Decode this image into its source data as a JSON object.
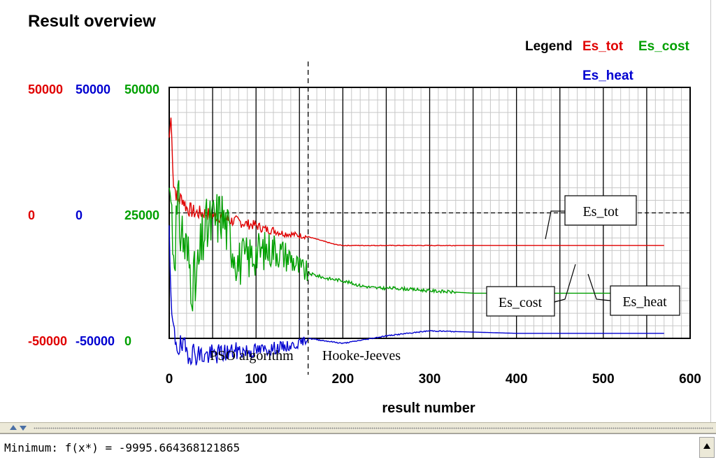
{
  "window": {
    "title": "Result overview",
    "console_text": "Minimum: f(x*) = -9995.664368121865"
  },
  "colors": {
    "tot": "#e00000",
    "heat": "#0000d0",
    "cost": "#00a000",
    "grid_major": "#000000",
    "grid_minor": "#c8c8c8"
  },
  "chart_data": {
    "type": "line",
    "title": "Result overview",
    "xlabel": "result number",
    "xlim": [
      0,
      600
    ],
    "x_ticks": [
      0,
      100,
      200,
      300,
      400,
      500,
      600
    ],
    "legend": {
      "title": "Legend",
      "placement": "top-right",
      "entries": [
        "Es_tot",
        "Es_cost",
        "Es_heat"
      ]
    },
    "y_axes": [
      {
        "series": "Es_tot",
        "color": "#e00000",
        "ylim": [
          -50000,
          50000
        ],
        "ticks": [
          "50000",
          "0",
          "-50000"
        ]
      },
      {
        "series": "Es_heat",
        "color": "#0000d0",
        "ylim": [
          -50000,
          50000
        ],
        "ticks": [
          "50000",
          "0",
          "-50000"
        ]
      },
      {
        "series": "Es_cost",
        "color": "#00a000",
        "ylim": [
          0,
          50000
        ],
        "ticks": [
          "50000",
          "25000",
          "0"
        ]
      }
    ],
    "grid": true,
    "phases": [
      {
        "label": "PSO algorithm",
        "x_range": [
          0,
          160
        ]
      },
      {
        "label": "Hooke-Jeeves",
        "x_range": [
          160,
          570
        ]
      }
    ],
    "phase_boundary_x": 160,
    "callouts": [
      "Es_tot",
      "Es_cost",
      "Es_heat"
    ],
    "series": [
      {
        "name": "Es_tot",
        "axis": 0,
        "x": [
          0,
          2,
          5,
          10,
          15,
          20,
          30,
          40,
          50,
          60,
          70,
          80,
          90,
          100,
          110,
          120,
          130,
          140,
          150,
          160,
          170,
          180,
          190,
          200,
          250,
          300,
          400,
          500,
          570
        ],
        "y": [
          30000,
          38000,
          12000,
          5000,
          6000,
          2000,
          0,
          0,
          -1000,
          -1500,
          -3000,
          -3500,
          -4500,
          -5000,
          -6500,
          -7000,
          -8000,
          -8500,
          -9000,
          -9500,
          -10500,
          -11500,
          -12500,
          -13000,
          -13000,
          -13000,
          -13000,
          -13000,
          -13000
        ]
      },
      {
        "name": "Es_heat",
        "axis": 1,
        "x": [
          0,
          2,
          5,
          10,
          20,
          40,
          60,
          80,
          100,
          120,
          140,
          150,
          160,
          180,
          200,
          250,
          300,
          400,
          500,
          570
        ],
        "y": [
          -5000,
          -38000,
          -48000,
          -53000,
          -55000,
          -57000,
          -56000,
          -55000,
          -55000,
          -54000,
          -53000,
          -52000,
          -50000,
          -51000,
          -52000,
          -49000,
          -47000,
          -48000,
          -48000,
          -48000
        ]
      },
      {
        "name": "Es_cost",
        "axis": 2,
        "x": [
          0,
          2,
          5,
          10,
          20,
          30,
          40,
          60,
          80,
          100,
          120,
          140,
          150,
          160,
          180,
          200,
          220,
          240,
          260,
          300,
          350,
          400,
          450,
          500,
          570
        ],
        "y": [
          30000,
          28000,
          18000,
          25000,
          17000,
          10000,
          21000,
          25000,
          15000,
          17000,
          18000,
          16000,
          14000,
          13000,
          12000,
          11500,
          10500,
          10000,
          10000,
          9500,
          9000,
          9000,
          9000,
          9000,
          9000
        ]
      }
    ]
  }
}
